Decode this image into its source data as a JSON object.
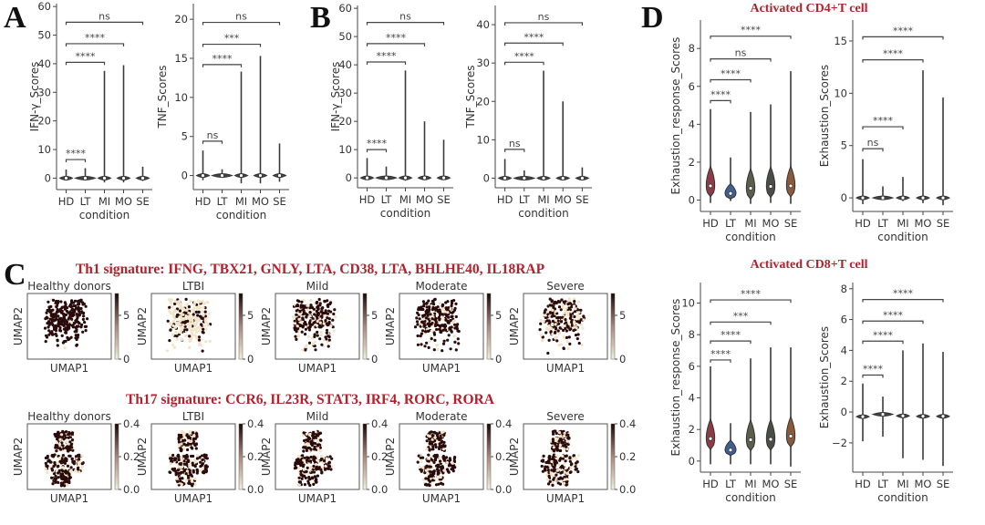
{
  "panels": {
    "A": "A",
    "B": "B",
    "C": "C",
    "D": "D"
  },
  "signatures": {
    "th1": "Th1 signature:  IFNG, TBX21, GNLY, LTA, CD38, LTA, BHLHE40, IL18RAP",
    "th17": "Th17 signature:  CCR6, IL23R, STAT3, IRF4, RORC, RORA"
  },
  "subtitles": {
    "cd4": "Activated CD4+T cell",
    "cd8": "Activated CD8+T cell"
  },
  "colors": {
    "accent_red": "#b0222c",
    "violin_hd": "#8e3b46",
    "violin_lt": "#3f5f8f",
    "violin_mi": "#5a5e4a",
    "violin_mo": "#4a4e46",
    "violin_se": "#8a5a3a",
    "umap_dark": "#2a0a0a",
    "umap_light": "#f1e4c8"
  },
  "chart_data": [
    {
      "id": "A1",
      "type": "violin",
      "panel": "A",
      "categories": [
        "HD",
        "LT",
        "MI",
        "MO",
        "SE"
      ],
      "xlabel": "condition",
      "ylabel": "IFN-γ_Scores",
      "ylim": [
        -4,
        61
      ],
      "yticks": [
        0,
        10,
        20,
        30,
        40,
        50,
        60
      ],
      "medians": [
        0,
        0,
        0,
        0,
        0
      ],
      "max": [
        3,
        3.5,
        37.5,
        39.5,
        4
      ],
      "min": [
        -0.8,
        -0.5,
        -1.5,
        -1.5,
        -1
      ],
      "comparisons": [
        {
          "from": "HD",
          "to": "LT",
          "label": "****",
          "y": 6.5
        },
        {
          "from": "HD",
          "to": "MI",
          "label": "****",
          "y": 40.5
        },
        {
          "from": "HD",
          "to": "MO",
          "label": "****",
          "y": 47
        },
        {
          "from": "HD",
          "to": "SE",
          "label": "ns",
          "y": 54.5
        }
      ]
    },
    {
      "id": "A2",
      "type": "violin",
      "panel": "A",
      "categories": [
        "HD",
        "LT",
        "MI",
        "MO",
        "SE"
      ],
      "xlabel": "condition",
      "ylabel": "TNF_Scores",
      "ylim": [
        -1.8,
        22
      ],
      "yticks": [
        0,
        5,
        10,
        15,
        20
      ],
      "medians": [
        0,
        0,
        0,
        0,
        0
      ],
      "max": [
        3.2,
        0.8,
        13.3,
        15.3,
        4.1
      ],
      "min": [
        -0.6,
        -0.3,
        -1,
        -1,
        -0.8
      ],
      "comparisons": [
        {
          "from": "HD",
          "to": "LT",
          "label": "ns",
          "y": 4.4
        },
        {
          "from": "HD",
          "to": "MI",
          "label": "****",
          "y": 14.2
        },
        {
          "from": "HD",
          "to": "MO",
          "label": "***",
          "y": 16.8
        },
        {
          "from": "HD",
          "to": "SE",
          "label": "ns",
          "y": 19.6
        }
      ]
    },
    {
      "id": "B1",
      "type": "violin",
      "panel": "B",
      "categories": [
        "HD",
        "LT",
        "MI",
        "MO",
        "SE"
      ],
      "xlabel": "condition",
      "ylabel": "IFN-γ_Scores",
      "ylim": [
        -3.5,
        61
      ],
      "yticks": [
        0,
        10,
        20,
        30,
        40,
        50,
        60
      ],
      "medians": [
        0,
        0,
        0,
        0,
        0
      ],
      "max": [
        7,
        4,
        38,
        20,
        13.5
      ],
      "min": [
        -0.5,
        -0.3,
        -1,
        -0.8,
        -0.6
      ],
      "comparisons": [
        {
          "from": "HD",
          "to": "LT",
          "label": "****",
          "y": 10
        },
        {
          "from": "HD",
          "to": "MI",
          "label": "****",
          "y": 41
        },
        {
          "from": "HD",
          "to": "MO",
          "label": "****",
          "y": 47.5
        },
        {
          "from": "HD",
          "to": "SE",
          "label": "ns",
          "y": 55
        }
      ]
    },
    {
      "id": "B2",
      "type": "violin",
      "panel": "B",
      "categories": [
        "HD",
        "LT",
        "MI",
        "MO",
        "SE"
      ],
      "xlabel": "condition",
      "ylabel": "TNF_Scores",
      "ylim": [
        -2.5,
        45
      ],
      "yticks": [
        0,
        10,
        20,
        30,
        40
      ],
      "medians": [
        0,
        0,
        0,
        0,
        0
      ],
      "max": [
        5,
        2,
        28,
        20,
        2.8
      ],
      "min": [
        -0.4,
        -0.2,
        -0.5,
        -0.5,
        -0.5
      ],
      "comparisons": [
        {
          "from": "HD",
          "to": "LT",
          "label": "ns",
          "y": 7.5
        },
        {
          "from": "HD",
          "to": "MI",
          "label": "****",
          "y": 30.2
        },
        {
          "from": "HD",
          "to": "MO",
          "label": "****",
          "y": 35.2
        },
        {
          "from": "HD",
          "to": "SE",
          "label": "ns",
          "y": 40.5
        }
      ]
    },
    {
      "id": "D1",
      "type": "violin",
      "panel": "D",
      "group": "Activated CD4+T cell",
      "categories": [
        "HD",
        "LT",
        "MI",
        "MO",
        "SE"
      ],
      "xlabel": "condition",
      "ylabel": "Exhaustion_response_Scores",
      "ylim": [
        -0.6,
        9.5
      ],
      "yticks": [
        0,
        2,
        4,
        6,
        8
      ],
      "medians": [
        0.75,
        0.35,
        0.62,
        0.72,
        0.75
      ],
      "max": [
        4.8,
        2.25,
        4.65,
        5.05,
        6.8
      ],
      "min": [
        -0.15,
        -0.05,
        -0.2,
        -0.15,
        -0.2
      ],
      "comparisons": [
        {
          "from": "HD",
          "to": "LT",
          "label": "****",
          "y": 5.25
        },
        {
          "from": "HD",
          "to": "MI",
          "label": "****",
          "y": 6.35
        },
        {
          "from": "HD",
          "to": "MO",
          "label": "ns",
          "y": 7.45
        },
        {
          "from": "HD",
          "to": "SE",
          "label": "****",
          "y": 8.65
        }
      ]
    },
    {
      "id": "D2",
      "type": "violin",
      "panel": "D",
      "group": "Activated CD4+T cell",
      "categories": [
        "HD",
        "LT",
        "MI",
        "MO",
        "SE"
      ],
      "xlabel": "condition",
      "ylabel": "Exhaustion_Scores",
      "ylim": [
        -1.3,
        17
      ],
      "yticks": [
        0,
        5,
        10,
        15
      ],
      "medians": [
        0,
        0,
        0,
        0,
        0
      ],
      "max": [
        3.7,
        1.1,
        2,
        12.2,
        9.6
      ],
      "min": [
        -0.6,
        -0.2,
        -0.3,
        -0.5,
        -0.7
      ],
      "comparisons": [
        {
          "from": "HD",
          "to": "LT",
          "label": "ns",
          "y": 4.7
        },
        {
          "from": "HD",
          "to": "MI",
          "label": "****",
          "y": 6.8
        },
        {
          "from": "HD",
          "to": "MO",
          "label": "****",
          "y": 13.2
        },
        {
          "from": "HD",
          "to": "SE",
          "label": "****",
          "y": 15.4
        }
      ]
    },
    {
      "id": "D3",
      "type": "violin",
      "panel": "D",
      "group": "Activated CD8+T cell",
      "categories": [
        "HD",
        "LT",
        "MI",
        "MO",
        "SE"
      ],
      "xlabel": "condition",
      "ylabel": "Exhaustion_response_Scores",
      "ylim": [
        -0.7,
        11.3
      ],
      "yticks": [
        0,
        2,
        4,
        6,
        8,
        10
      ],
      "medians": [
        1.42,
        0.7,
        1.35,
        1.38,
        1.58
      ],
      "max": [
        6,
        2.4,
        6.5,
        7.2,
        7.2
      ],
      "min": [
        -0.2,
        -0.2,
        -0.2,
        -0.2,
        -0.35
      ],
      "comparisons": [
        {
          "from": "HD",
          "to": "LT",
          "label": "****",
          "y": 6.4
        },
        {
          "from": "HD",
          "to": "MI",
          "label": "****",
          "y": 7.6
        },
        {
          "from": "HD",
          "to": "MO",
          "label": "***",
          "y": 8.8
        },
        {
          "from": "HD",
          "to": "SE",
          "label": "****",
          "y": 10.2
        }
      ]
    },
    {
      "id": "D4",
      "type": "violin",
      "panel": "D",
      "group": "Activated CD8+T cell",
      "categories": [
        "HD",
        "LT",
        "MI",
        "MO",
        "SE"
      ],
      "xlabel": "condition",
      "ylabel": "Exhaustion_Scores",
      "ylim": [
        -3.9,
        8.4
      ],
      "yticks": [
        -2,
        0,
        2,
        4,
        6,
        8
      ],
      "medians": [
        -0.3,
        -0.15,
        -0.25,
        -0.28,
        -0.28
      ],
      "max": [
        1.85,
        1,
        4,
        4.45,
        3.9
      ],
      "min": [
        -1.9,
        -1.6,
        -3,
        -3.1,
        -3.5
      ],
      "comparisons": [
        {
          "from": "HD",
          "to": "LT",
          "label": "****",
          "y": 2.4
        },
        {
          "from": "HD",
          "to": "MI",
          "label": "****",
          "y": 4.6
        },
        {
          "from": "HD",
          "to": "MO",
          "label": "****",
          "y": 5.9
        },
        {
          "from": "HD",
          "to": "SE",
          "label": "****",
          "y": 7.3
        }
      ]
    },
    {
      "id": "C-th1",
      "type": "scatter",
      "panel": "C",
      "signature": "Th1",
      "xlabel": "UMAP1",
      "ylabel": "UMAP2",
      "titles": [
        "Healthy donors",
        "LTBI",
        "Mild",
        "Moderate",
        "Severe"
      ],
      "colorbar_ticks": [
        "0",
        "5"
      ],
      "colorbar_range": [
        0,
        7.5
      ],
      "relative_intensity": [
        0.95,
        0.25,
        0.7,
        0.8,
        0.6
      ]
    },
    {
      "id": "C-th17",
      "type": "scatter",
      "panel": "C",
      "signature": "Th17",
      "xlabel": "UMAP1",
      "ylabel": "UMAP2",
      "titles": [
        "Healthy donors",
        "LTBI",
        "Mild",
        "Moderate",
        "Severe"
      ],
      "colorbar_ticks": [
        "0.0",
        "0.2",
        "0.4"
      ],
      "colorbar_range": [
        0,
        0.4
      ],
      "relative_intensity": [
        0.8,
        0.7,
        0.75,
        0.75,
        0.7
      ]
    }
  ]
}
